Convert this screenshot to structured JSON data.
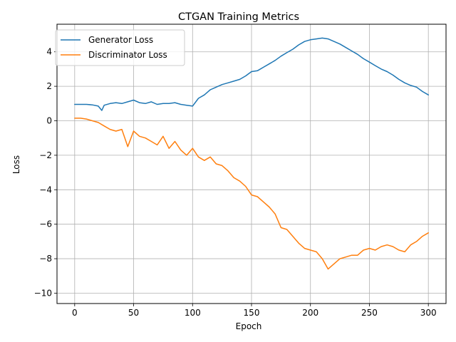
{
  "chart_data": {
    "type": "line",
    "title": "CTGAN Training Metrics",
    "xlabel": "Epoch",
    "ylabel": "Loss",
    "xlim": [
      -15,
      315
    ],
    "ylim": [
      -10.6,
      5.6
    ],
    "x_ticks": [
      0,
      50,
      100,
      150,
      200,
      250,
      300
    ],
    "y_ticks": [
      4,
      2,
      0,
      -2,
      -4,
      -6,
      -8,
      -10
    ],
    "y_tick_labels": [
      "4",
      "2",
      "0",
      "−2",
      "−4",
      "−6",
      "−8",
      "−10"
    ],
    "grid": true,
    "legend_position": "upper-left",
    "series": [
      {
        "name": "Generator Loss",
        "color": "#1f77b4",
        "points": [
          [
            0,
            0.95
          ],
          [
            5,
            0.95
          ],
          [
            10,
            0.95
          ],
          [
            15,
            0.92
          ],
          [
            20,
            0.85
          ],
          [
            23,
            0.6
          ],
          [
            25,
            0.9
          ],
          [
            30,
            1.0
          ],
          [
            35,
            1.05
          ],
          [
            40,
            1.0
          ],
          [
            45,
            1.1
          ],
          [
            50,
            1.2
          ],
          [
            55,
            1.05
          ],
          [
            60,
            1.0
          ],
          [
            65,
            1.1
          ],
          [
            70,
            0.95
          ],
          [
            75,
            1.0
          ],
          [
            80,
            1.0
          ],
          [
            85,
            1.05
          ],
          [
            90,
            0.95
          ],
          [
            95,
            0.9
          ],
          [
            100,
            0.85
          ],
          [
            105,
            1.3
          ],
          [
            110,
            1.5
          ],
          [
            115,
            1.8
          ],
          [
            120,
            1.95
          ],
          [
            125,
            2.1
          ],
          [
            130,
            2.2
          ],
          [
            135,
            2.3
          ],
          [
            140,
            2.4
          ],
          [
            145,
            2.6
          ],
          [
            150,
            2.85
          ],
          [
            155,
            2.9
          ],
          [
            160,
            3.1
          ],
          [
            165,
            3.3
          ],
          [
            170,
            3.5
          ],
          [
            175,
            3.75
          ],
          [
            180,
            3.95
          ],
          [
            185,
            4.15
          ],
          [
            190,
            4.4
          ],
          [
            195,
            4.6
          ],
          [
            200,
            4.7
          ],
          [
            205,
            4.75
          ],
          [
            210,
            4.8
          ],
          [
            215,
            4.75
          ],
          [
            220,
            4.6
          ],
          [
            225,
            4.45
          ],
          [
            230,
            4.25
          ],
          [
            235,
            4.05
          ],
          [
            240,
            3.85
          ],
          [
            245,
            3.6
          ],
          [
            250,
            3.4
          ],
          [
            255,
            3.2
          ],
          [
            260,
            3.0
          ],
          [
            265,
            2.85
          ],
          [
            270,
            2.65
          ],
          [
            275,
            2.4
          ],
          [
            280,
            2.2
          ],
          [
            285,
            2.05
          ],
          [
            290,
            1.95
          ],
          [
            295,
            1.7
          ],
          [
            300,
            1.5
          ]
        ]
      },
      {
        "name": "Discriminator Loss",
        "color": "#ff7f0e",
        "points": [
          [
            0,
            0.15
          ],
          [
            5,
            0.15
          ],
          [
            10,
            0.1
          ],
          [
            15,
            0.0
          ],
          [
            20,
            -0.1
          ],
          [
            25,
            -0.3
          ],
          [
            30,
            -0.5
          ],
          [
            35,
            -0.6
          ],
          [
            40,
            -0.5
          ],
          [
            45,
            -1.5
          ],
          [
            50,
            -0.6
          ],
          [
            55,
            -0.9
          ],
          [
            60,
            -1.0
          ],
          [
            65,
            -1.2
          ],
          [
            70,
            -1.4
          ],
          [
            75,
            -0.9
          ],
          [
            80,
            -1.6
          ],
          [
            85,
            -1.2
          ],
          [
            90,
            -1.7
          ],
          [
            95,
            -2.0
          ],
          [
            100,
            -1.6
          ],
          [
            105,
            -2.1
          ],
          [
            110,
            -2.3
          ],
          [
            115,
            -2.1
          ],
          [
            120,
            -2.5
          ],
          [
            125,
            -2.6
          ],
          [
            130,
            -2.9
          ],
          [
            135,
            -3.3
          ],
          [
            140,
            -3.5
          ],
          [
            145,
            -3.8
          ],
          [
            150,
            -4.3
          ],
          [
            155,
            -4.4
          ],
          [
            160,
            -4.7
          ],
          [
            165,
            -5.0
          ],
          [
            170,
            -5.4
          ],
          [
            175,
            -6.2
          ],
          [
            180,
            -6.3
          ],
          [
            185,
            -6.7
          ],
          [
            190,
            -7.1
          ],
          [
            195,
            -7.4
          ],
          [
            200,
            -7.5
          ],
          [
            205,
            -7.6
          ],
          [
            210,
            -8.0
          ],
          [
            215,
            -8.6
          ],
          [
            220,
            -8.3
          ],
          [
            225,
            -8.0
          ],
          [
            230,
            -7.9
          ],
          [
            235,
            -7.8
          ],
          [
            240,
            -7.8
          ],
          [
            245,
            -7.5
          ],
          [
            250,
            -7.4
          ],
          [
            255,
            -7.5
          ],
          [
            260,
            -7.3
          ],
          [
            265,
            -7.2
          ],
          [
            270,
            -7.3
          ],
          [
            275,
            -7.5
          ],
          [
            280,
            -7.6
          ],
          [
            285,
            -7.2
          ],
          [
            290,
            -7.0
          ],
          [
            295,
            -6.7
          ],
          [
            300,
            -6.5
          ]
        ]
      }
    ]
  }
}
